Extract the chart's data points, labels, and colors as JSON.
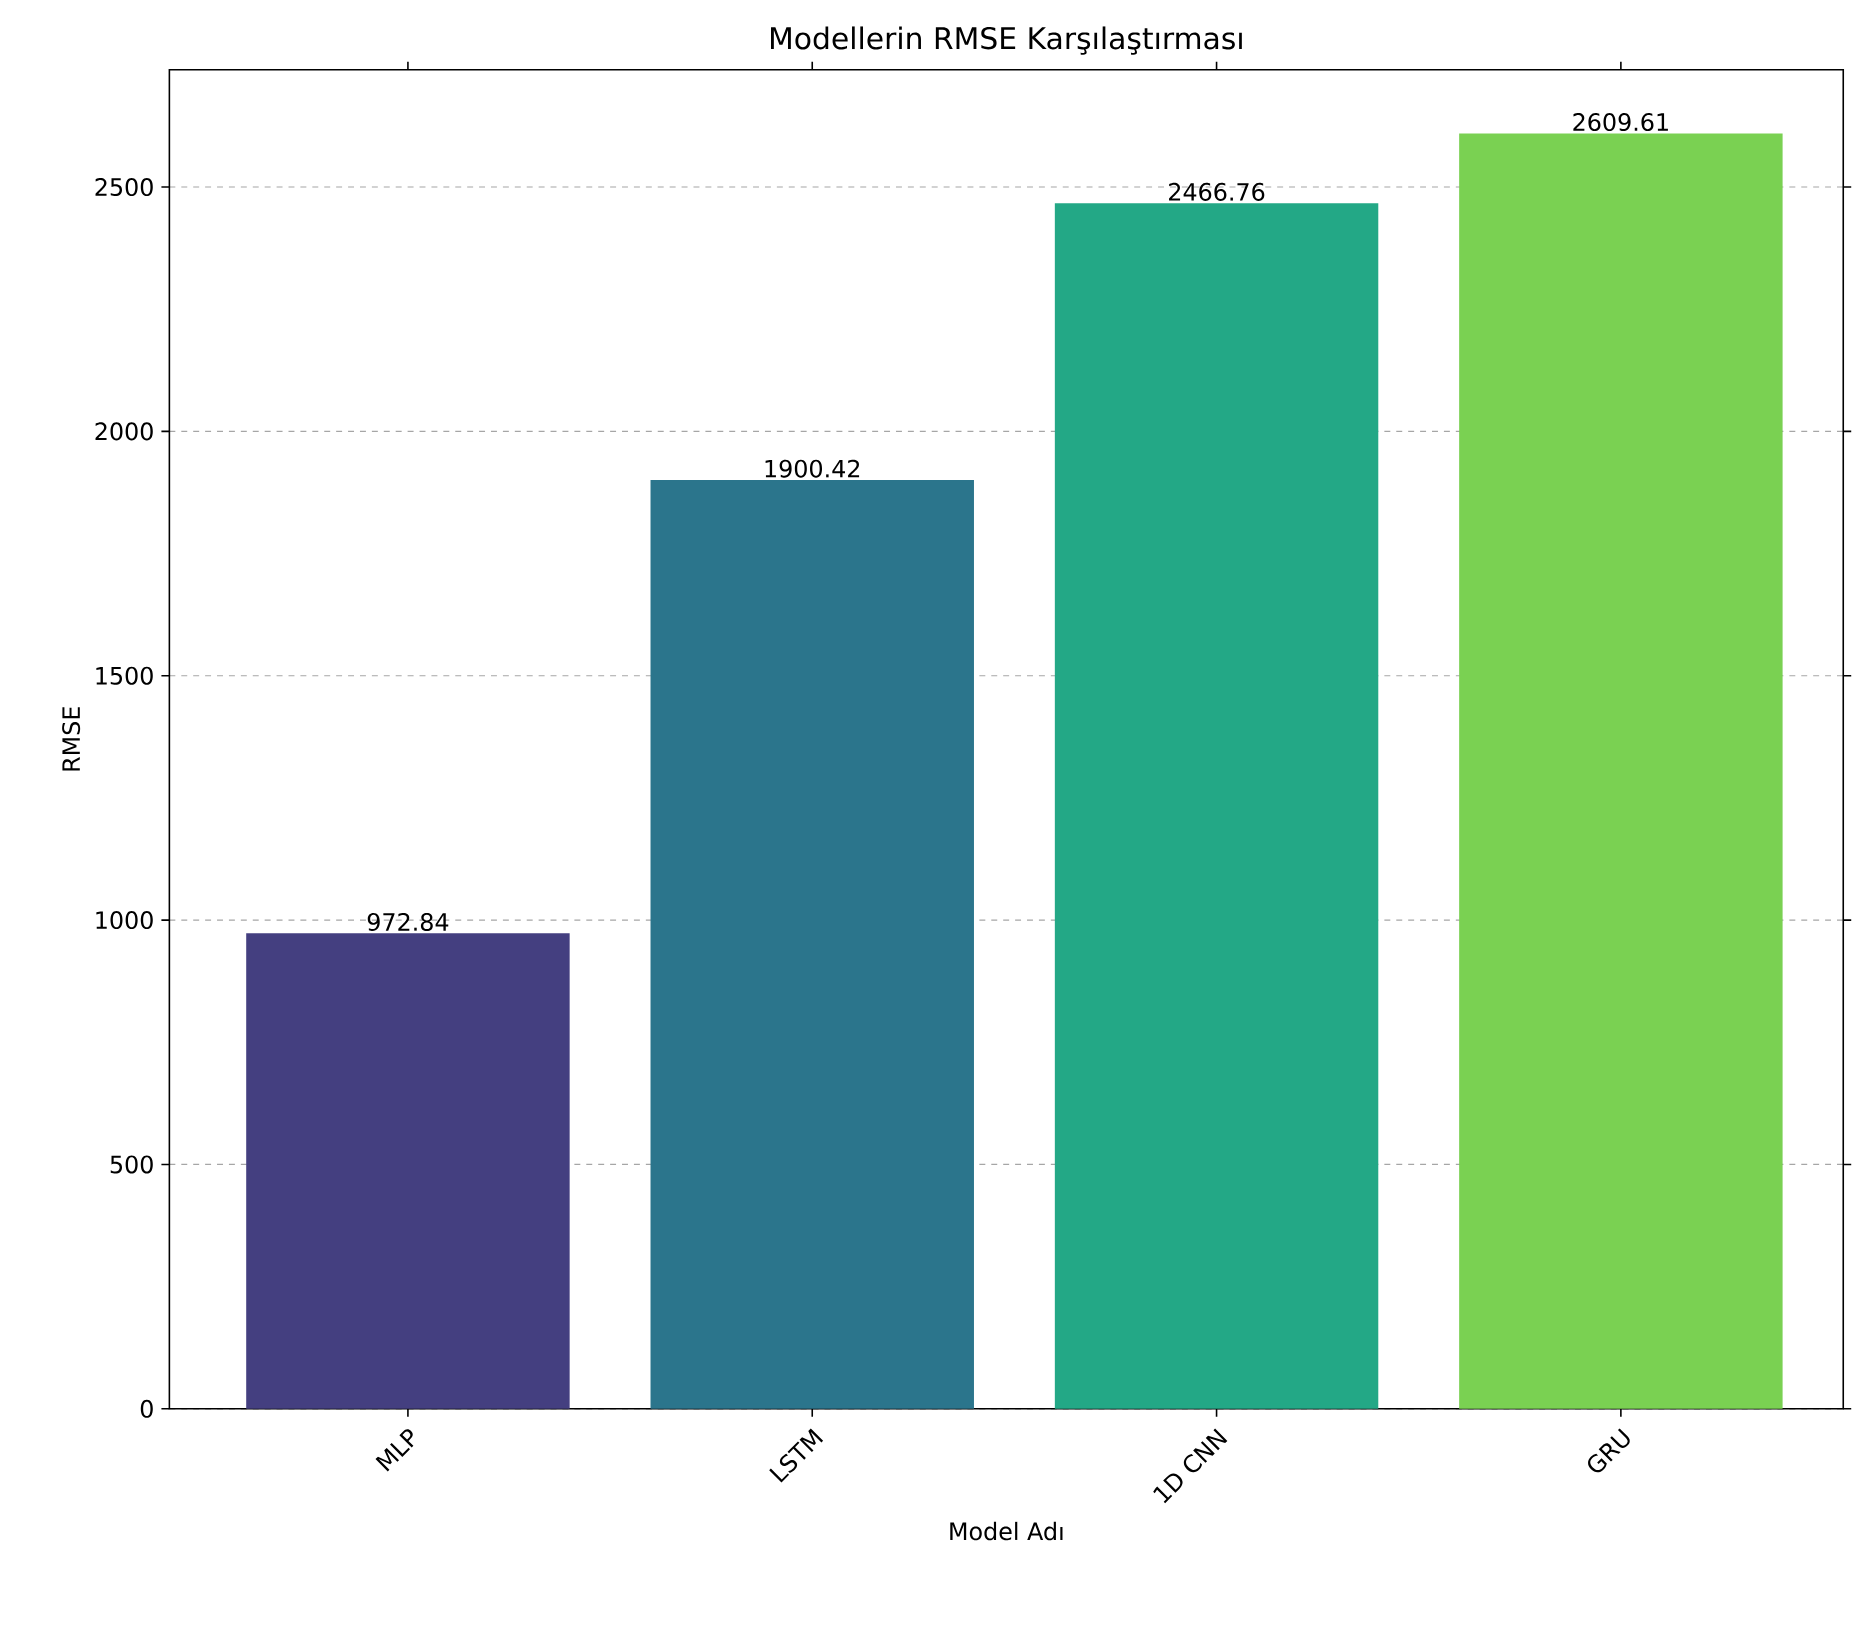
{
  "chart_data": {
    "type": "bar",
    "title": "Modellerin RMSE Karşılaştırması",
    "xlabel": "Model Adı",
    "ylabel": "RMSE",
    "categories": [
      "MLP",
      "LSTM",
      "1D CNN",
      "GRU"
    ],
    "values": [
      972.84,
      1900.42,
      2466.76,
      2609.61
    ],
    "colors": [
      "#443f80",
      "#2b758c",
      "#23a886",
      "#7ad152"
    ],
    "ylim": [
      0,
      2740
    ],
    "yticks": [
      0,
      500,
      1000,
      1500,
      2000,
      2500
    ],
    "grid": "y",
    "data_labels": true
  }
}
